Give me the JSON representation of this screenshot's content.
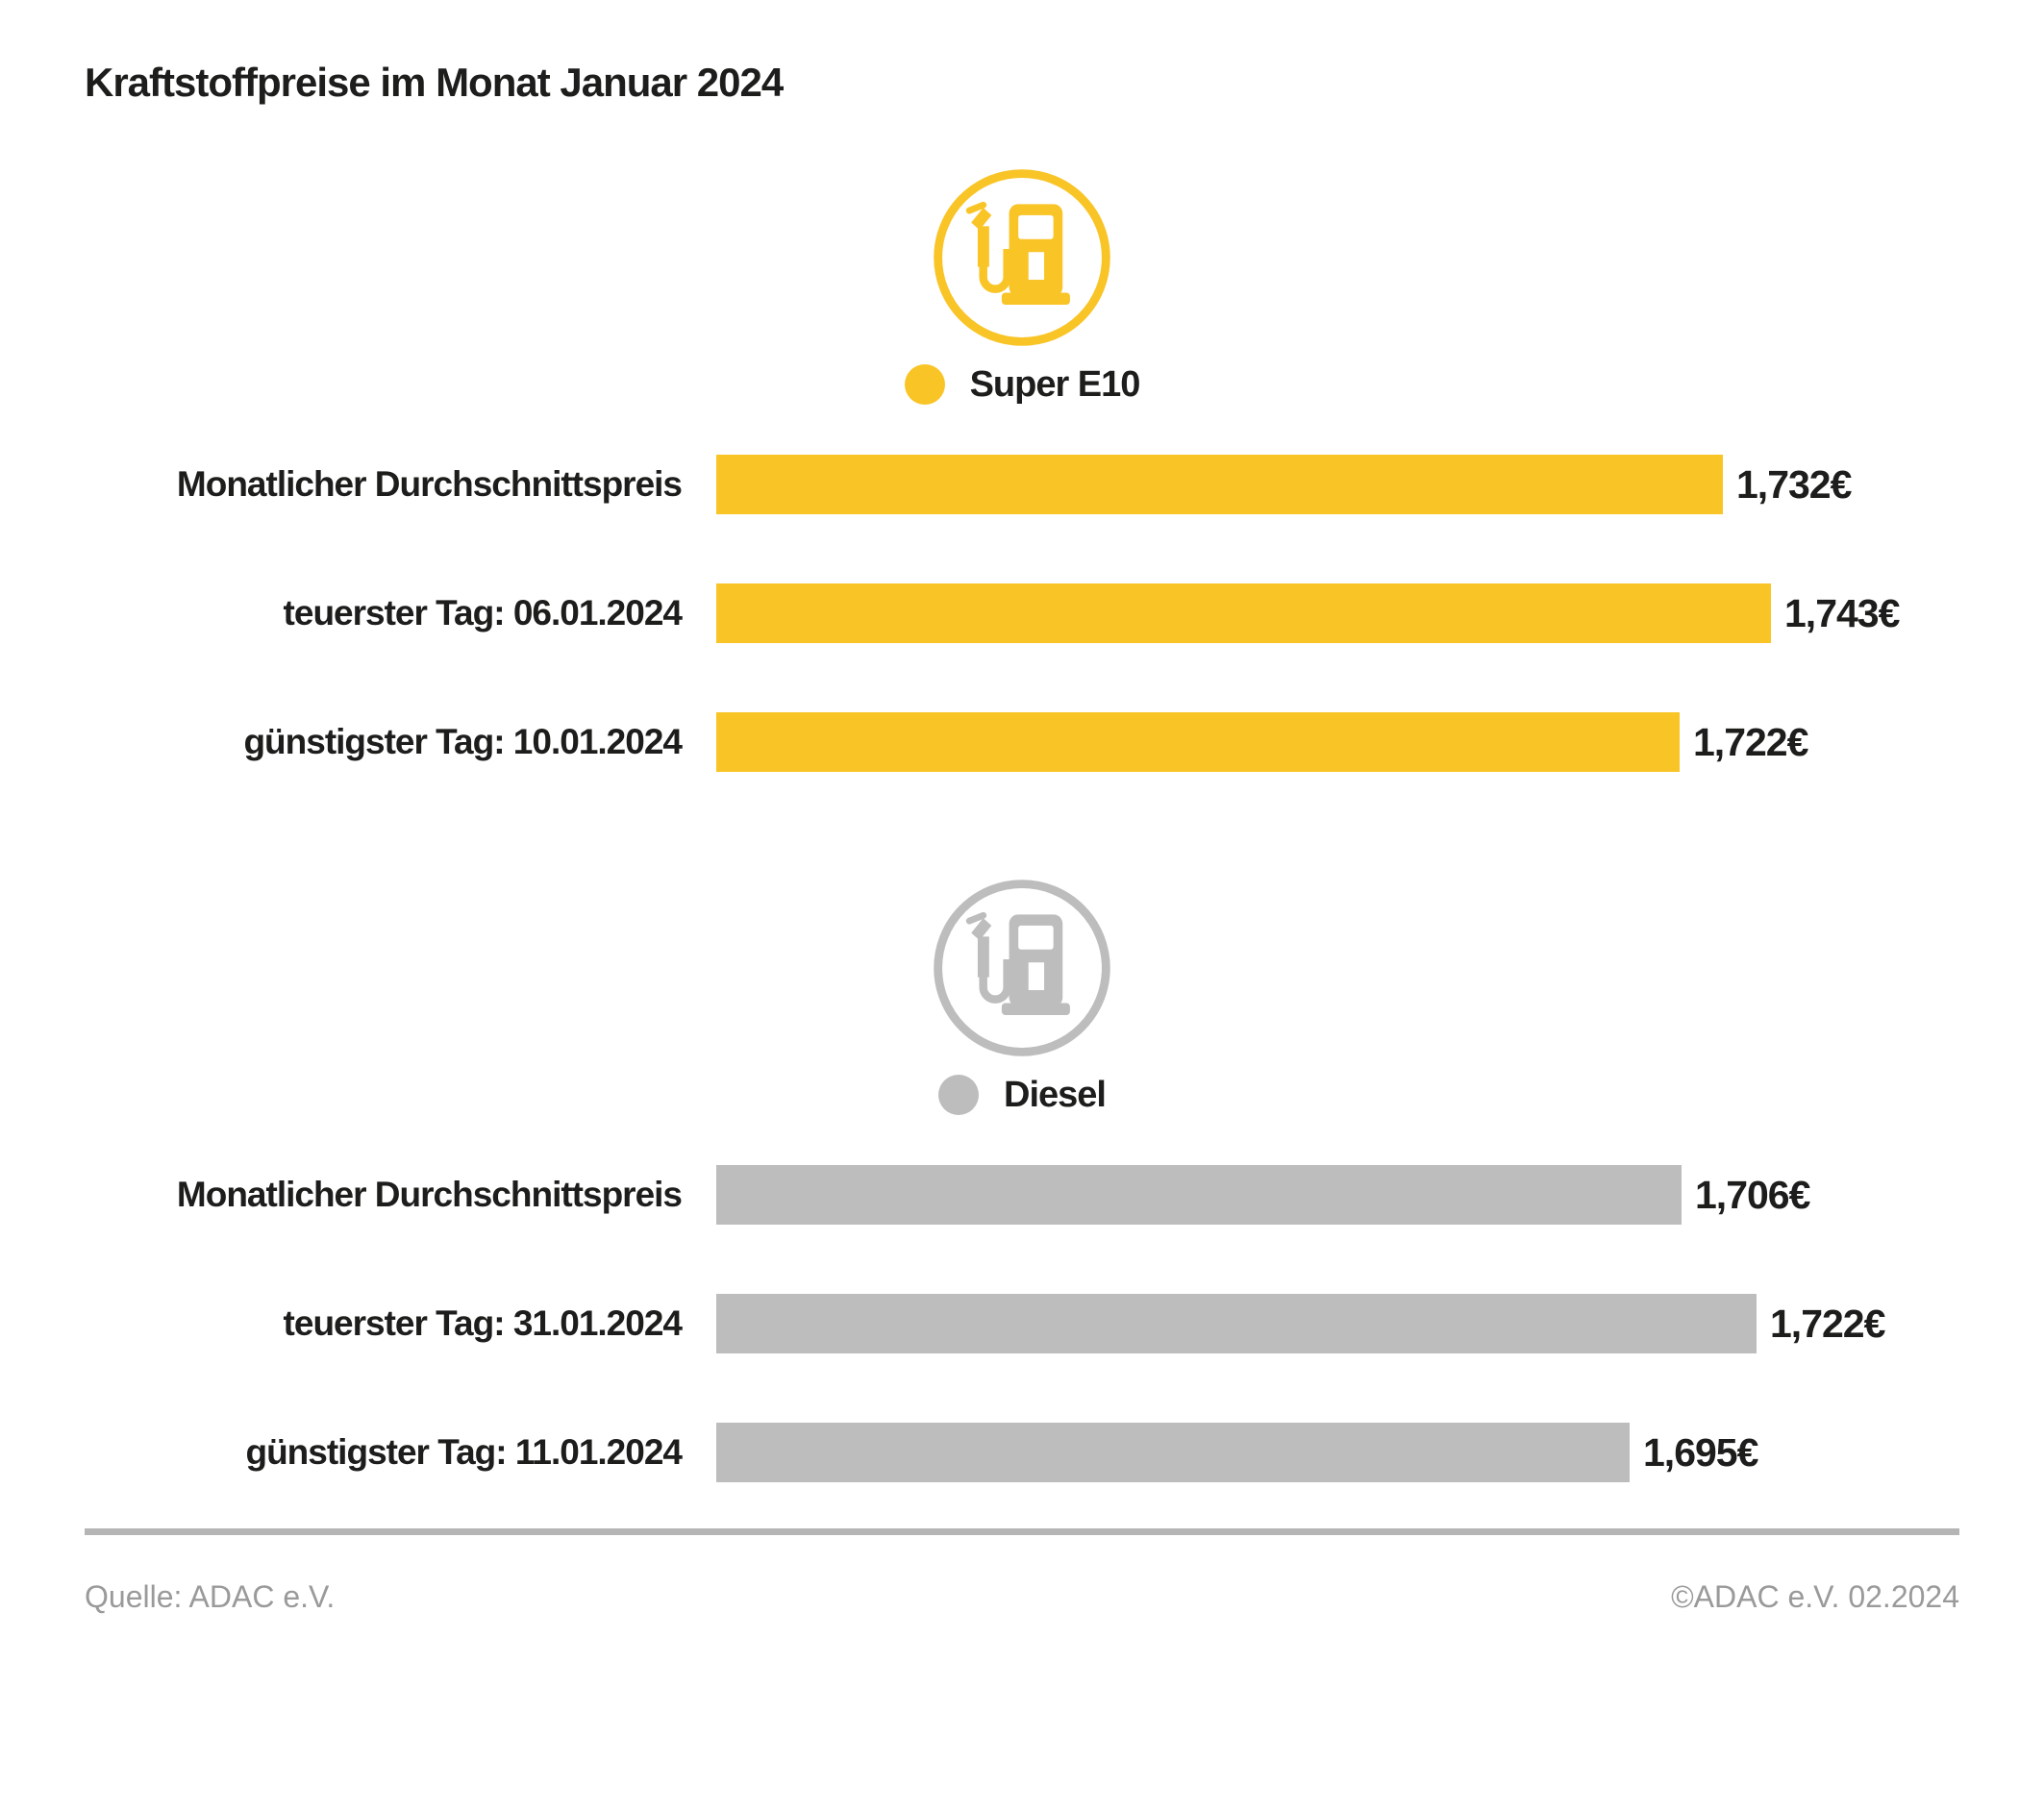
{
  "title": "Kraftstoffpreise im Monat Januar 2024",
  "colors": {
    "super_e10": "#F9C426",
    "diesel": "#BDBDBD",
    "text": "#1D1D1B",
    "footer_text": "#9A9A9A",
    "divider": "#B5B5B5"
  },
  "chart_data": {
    "type": "bar",
    "orientation": "horizontal",
    "title": "Kraftstoffpreise im Monat Januar 2024",
    "value_unit": "€",
    "legend_position": "above-each-group",
    "grid": false,
    "groups": [
      {
        "fuel": "Super E10",
        "color": "#F9C426",
        "icon": "fuel-pump-icon",
        "axis": {
          "min": 1.5,
          "max": 1.745
        },
        "rows": [
          {
            "label": "Monatlicher Durchschnittspreis",
            "value": 1.732,
            "display": "1,732€"
          },
          {
            "label": "teuerster Tag: 06.01.2024",
            "value": 1.743,
            "display": "1,743€"
          },
          {
            "label": "günstigster Tag: 10.01.2024",
            "value": 1.722,
            "display": "1,722€"
          }
        ]
      },
      {
        "fuel": "Diesel",
        "color": "#BDBDBD",
        "icon": "fuel-pump-icon",
        "axis": {
          "min": 1.5,
          "max": 1.727
        },
        "rows": [
          {
            "label": "Monatlicher Durchschnittspreis",
            "value": 1.706,
            "display": "1,706€"
          },
          {
            "label": "teuerster Tag: 31.01.2024",
            "value": 1.722,
            "display": "1,722€"
          },
          {
            "label": "günstigster Tag: 11.01.2024",
            "value": 1.695,
            "display": "1,695€"
          }
        ]
      }
    ]
  },
  "footer": {
    "source": "Quelle: ADAC e.V.",
    "copyright": "©ADAC e.V. 02.2024"
  }
}
